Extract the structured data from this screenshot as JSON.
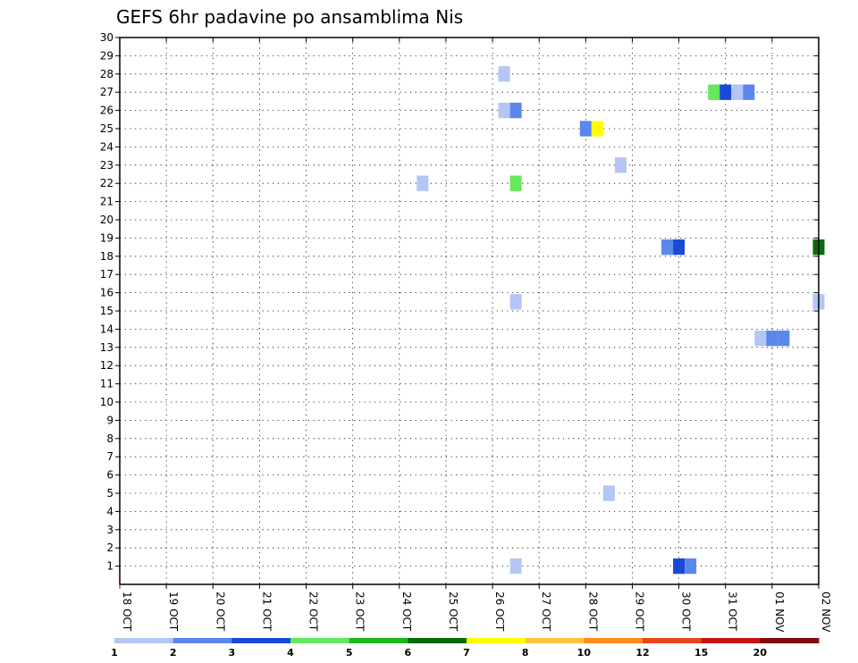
{
  "chart_data": {
    "type": "heatmap",
    "title": "GEFS 6hr padavine po ansamblima Nis",
    "xlabel": "",
    "ylabel": "",
    "x_tick_labels": [
      "18 OCT",
      "19 OCT",
      "20 OCT",
      "21 OCT",
      "22 OCT",
      "23 OCT",
      "24 OCT",
      "25 OCT",
      "26 OCT",
      "27 OCT",
      "28 OCT",
      "29 OCT",
      "30 OCT",
      "31 OCT",
      "01 NOV",
      "02 NOV"
    ],
    "x_range_days": [
      0,
      15
    ],
    "y_tick_labels": [
      1,
      2,
      3,
      4,
      5,
      6,
      7,
      8,
      9,
      10,
      11,
      12,
      13,
      14,
      15,
      16,
      17,
      18,
      19,
      20,
      21,
      22,
      23,
      24,
      25,
      26,
      27,
      28,
      29,
      30
    ],
    "y_range": [
      0,
      30
    ],
    "grid": true,
    "colorbar": {
      "labels": [
        "1",
        "2",
        "3",
        "4",
        "5",
        "6",
        "7",
        "8",
        "10",
        "12",
        "15",
        "20"
      ],
      "colors": [
        "#b4c6f5",
        "#5a87ec",
        "#1a49d8",
        "#64e85c",
        "#1db81d",
        "#0a6a0a",
        "#ffff00",
        "#ffc33c",
        "#ff8c1e",
        "#e84518",
        "#c81414",
        "#820a0a"
      ]
    },
    "cells": [
      {
        "day": 8.25,
        "member": 28,
        "value": 1.5
      },
      {
        "day": 8.25,
        "member": 26,
        "value": 1.5
      },
      {
        "day": 8.5,
        "member": 26,
        "value": 2.5
      },
      {
        "day": 8.5,
        "member": 22,
        "value": 4.5
      },
      {
        "day": 8.5,
        "member": 15.5,
        "value": 1.5
      },
      {
        "day": 8.5,
        "member": 1,
        "value": 1.5
      },
      {
        "day": 6.5,
        "member": 22,
        "value": 1.5
      },
      {
        "day": 10.0,
        "member": 25,
        "value": 2.5
      },
      {
        "day": 10.25,
        "member": 25,
        "value": 7.5
      },
      {
        "day": 10.75,
        "member": 23,
        "value": 1.5
      },
      {
        "day": 10.5,
        "member": 5,
        "value": 1.5
      },
      {
        "day": 11.75,
        "member": 18.5,
        "value": 2.5
      },
      {
        "day": 12.0,
        "member": 18.5,
        "value": 3.5
      },
      {
        "day": 12.0,
        "member": 1,
        "value": 3.5
      },
      {
        "day": 12.25,
        "member": 1,
        "value": 2.5
      },
      {
        "day": 12.75,
        "member": 27,
        "value": 4.5
      },
      {
        "day": 13.0,
        "member": 27,
        "value": 3.5
      },
      {
        "day": 13.25,
        "member": 27,
        "value": 1.5
      },
      {
        "day": 13.5,
        "member": 27,
        "value": 2.5
      },
      {
        "day": 13.75,
        "member": 13.5,
        "value": 1.5
      },
      {
        "day": 14.0,
        "member": 13.5,
        "value": 2.5
      },
      {
        "day": 14.25,
        "member": 13.5,
        "value": 2.5
      },
      {
        "day": 15.0,
        "member": 18.5,
        "value": 6.5
      },
      {
        "day": 15.0,
        "member": 15.5,
        "value": 1.5
      }
    ]
  }
}
